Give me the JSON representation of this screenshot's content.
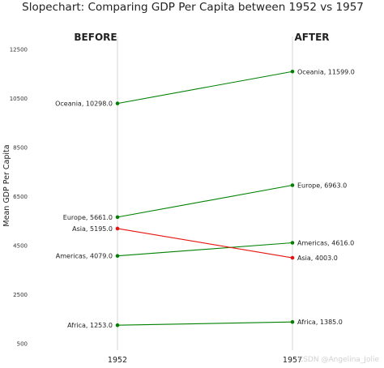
{
  "chart_data": {
    "type": "line",
    "title": "Slopechart: Comparing GDP Per Capita between 1952 vs 1957",
    "ylabel": "Mean GDP Per Capita",
    "xlabel": "",
    "categories": [
      "1952",
      "1957"
    ],
    "column_headers": [
      "BEFORE",
      "AFTER"
    ],
    "yticks": [
      500,
      2500,
      4500,
      6500,
      8500,
      10500,
      12500
    ],
    "ylim": [
      500,
      12500
    ],
    "grid": false,
    "series": [
      {
        "name": "Africa",
        "values": [
          1253.0,
          1385.0
        ],
        "color": "#008000",
        "left_label": "Africa, 1253.0",
        "right_label": "Africa, 1385.0"
      },
      {
        "name": "Americas",
        "values": [
          4079.0,
          4616.0
        ],
        "color": "#008000",
        "left_label": "Americas, 4079.0",
        "right_label": "Americas, 4616.0"
      },
      {
        "name": "Asia",
        "values": [
          5195.0,
          4003.0
        ],
        "color": "#e8130e",
        "left_label": "Asia, 5195.0",
        "right_label": "Asia, 4003.0"
      },
      {
        "name": "Europe",
        "values": [
          5661.0,
          6963.0
        ],
        "color": "#008000",
        "left_label": "Europe, 5661.0",
        "right_label": "Europe, 6963.0"
      },
      {
        "name": "Oceania",
        "values": [
          10298.0,
          11599.0
        ],
        "color": "#008000",
        "left_label": "Oceania, 10298.0",
        "right_label": "Oceania, 11599.0"
      }
    ]
  },
  "watermark": "CSDN @Angelina_Jolie"
}
